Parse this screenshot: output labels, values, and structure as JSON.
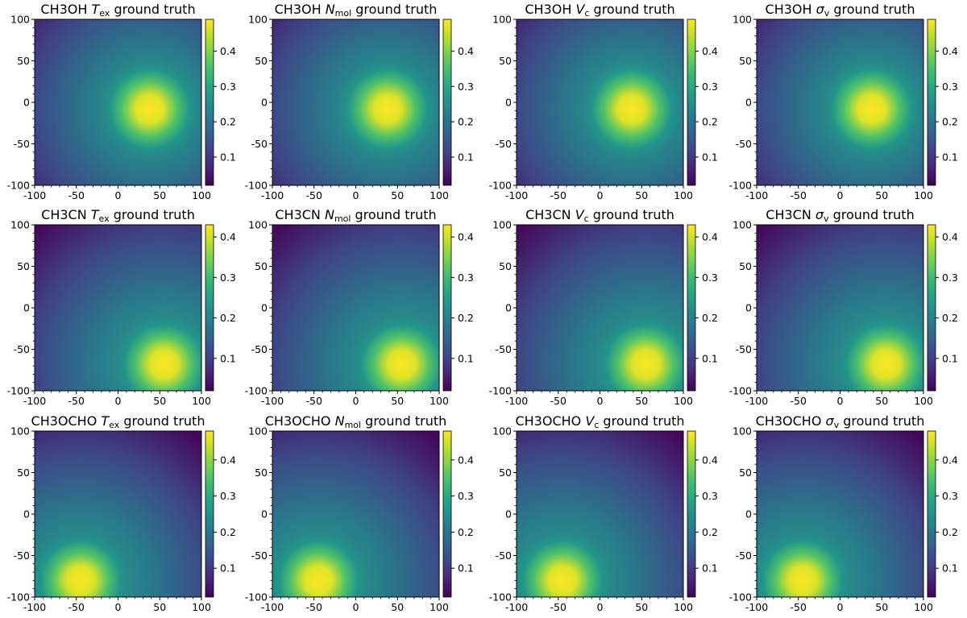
{
  "chart_data": [
    {
      "type": "heatmap",
      "title_prefix": "CH3OH",
      "title_param_base": "T",
      "title_param_sub": "ex",
      "title_suffix": "ground truth",
      "x_ticks": [
        "-100",
        "-50",
        "0",
        "50",
        "100"
      ],
      "y_ticks": [
        "100",
        "50",
        "0",
        "-50",
        "-100"
      ],
      "xlim": [
        -100,
        100
      ],
      "ylim": [
        -100,
        100
      ],
      "colorbar_ticks": [
        "0.1",
        "0.2",
        "0.3",
        "0.4"
      ],
      "vmin": 0.02,
      "vmax": 0.49,
      "peak": {
        "x": 38,
        "y": -8
      },
      "colormap": "viridis"
    },
    {
      "type": "heatmap",
      "title_prefix": "CH3OH",
      "title_param_base": "N",
      "title_param_sub": "mol",
      "title_suffix": "ground truth",
      "x_ticks": [
        "-100",
        "-50",
        "0",
        "50",
        "100"
      ],
      "y_ticks": [
        "100",
        "50",
        "0",
        "-50",
        "-100"
      ],
      "xlim": [
        -100,
        100
      ],
      "ylim": [
        -100,
        100
      ],
      "colorbar_ticks": [
        "0.1",
        "0.2",
        "0.3",
        "0.4"
      ],
      "vmin": 0.02,
      "vmax": 0.49,
      "peak": {
        "x": 38,
        "y": -8
      },
      "colormap": "viridis"
    },
    {
      "type": "heatmap",
      "title_prefix": "CH3OH",
      "title_param_base": "V",
      "title_param_sub": "c",
      "title_suffix": "ground truth",
      "x_ticks": [
        "-100",
        "-50",
        "0",
        "50",
        "100"
      ],
      "y_ticks": [
        "100",
        "50",
        "0",
        "-50",
        "-100"
      ],
      "xlim": [
        -100,
        100
      ],
      "ylim": [
        -100,
        100
      ],
      "colorbar_ticks": [
        "0.1",
        "0.2",
        "0.3",
        "0.4"
      ],
      "vmin": 0.02,
      "vmax": 0.49,
      "peak": {
        "x": 38,
        "y": -8
      },
      "colormap": "viridis"
    },
    {
      "type": "heatmap",
      "title_prefix": "CH3OH",
      "title_param_base": "σ",
      "title_param_sub": "v",
      "title_suffix": "ground truth",
      "x_ticks": [
        "-100",
        "-50",
        "0",
        "50",
        "100"
      ],
      "y_ticks": [
        "100",
        "50",
        "0",
        "-50",
        "-100"
      ],
      "xlim": [
        -100,
        100
      ],
      "ylim": [
        -100,
        100
      ],
      "colorbar_ticks": [
        "0.1",
        "0.2",
        "0.3",
        "0.4"
      ],
      "vmin": 0.02,
      "vmax": 0.49,
      "peak": {
        "x": 38,
        "y": -8
      },
      "colormap": "viridis"
    },
    {
      "type": "heatmap",
      "title_prefix": "CH3CN",
      "title_param_base": "T",
      "title_param_sub": "ex",
      "title_suffix": "ground truth",
      "x_ticks": [
        "-100",
        "-50",
        "0",
        "50",
        "100"
      ],
      "y_ticks": [
        "100",
        "50",
        "0",
        "-50",
        "-100"
      ],
      "xlim": [
        -100,
        100
      ],
      "ylim": [
        -100,
        100
      ],
      "colorbar_ticks": [
        "0.1",
        "0.2",
        "0.3",
        "0.4"
      ],
      "vmin": 0.02,
      "vmax": 0.43,
      "peak": {
        "x": 55,
        "y": -68
      },
      "colormap": "viridis"
    },
    {
      "type": "heatmap",
      "title_prefix": "CH3CN",
      "title_param_base": "N",
      "title_param_sub": "mol",
      "title_suffix": "ground truth",
      "x_ticks": [
        "-100",
        "-50",
        "0",
        "50",
        "100"
      ],
      "y_ticks": [
        "100",
        "50",
        "0",
        "-50",
        "-100"
      ],
      "xlim": [
        -100,
        100
      ],
      "ylim": [
        -100,
        100
      ],
      "colorbar_ticks": [
        "0.1",
        "0.2",
        "0.3",
        "0.4"
      ],
      "vmin": 0.02,
      "vmax": 0.43,
      "peak": {
        "x": 55,
        "y": -68
      },
      "colormap": "viridis"
    },
    {
      "type": "heatmap",
      "title_prefix": "CH3CN",
      "title_param_base": "V",
      "title_param_sub": "c",
      "title_suffix": "ground truth",
      "x_ticks": [
        "-100",
        "-50",
        "0",
        "50",
        "100"
      ],
      "y_ticks": [
        "100",
        "50",
        "0",
        "-50",
        "-100"
      ],
      "xlim": [
        -100,
        100
      ],
      "ylim": [
        -100,
        100
      ],
      "colorbar_ticks": [
        "0.1",
        "0.2",
        "0.3",
        "0.4"
      ],
      "vmin": 0.02,
      "vmax": 0.43,
      "peak": {
        "x": 55,
        "y": -68
      },
      "colormap": "viridis"
    },
    {
      "type": "heatmap",
      "title_prefix": "CH3CN",
      "title_param_base": "σ",
      "title_param_sub": "v",
      "title_suffix": "ground truth",
      "x_ticks": [
        "-100",
        "-50",
        "0",
        "50",
        "100"
      ],
      "y_ticks": [
        "100",
        "50",
        "0",
        "-50",
        "-100"
      ],
      "xlim": [
        -100,
        100
      ],
      "ylim": [
        -100,
        100
      ],
      "colorbar_ticks": [
        "0.1",
        "0.2",
        "0.3",
        "0.4"
      ],
      "vmin": 0.02,
      "vmax": 0.43,
      "peak": {
        "x": 55,
        "y": -68
      },
      "colormap": "viridis"
    },
    {
      "type": "heatmap",
      "title_prefix": "CH3OCHO",
      "title_param_base": "T",
      "title_param_sub": "ex",
      "title_suffix": "ground truth",
      "x_ticks": [
        "-100",
        "-50",
        "0",
        "50",
        "100"
      ],
      "y_ticks": [
        "100",
        "50",
        "0",
        "-50",
        "-100"
      ],
      "xlim": [
        -100,
        100
      ],
      "ylim": [
        -100,
        100
      ],
      "colorbar_ticks": [
        "0.1",
        "0.2",
        "0.3",
        "0.4"
      ],
      "vmin": 0.02,
      "vmax": 0.48,
      "peak": {
        "x": -45,
        "y": -80
      },
      "colormap": "viridis"
    },
    {
      "type": "heatmap",
      "title_prefix": "CH3OCHO",
      "title_param_base": "N",
      "title_param_sub": "mol",
      "title_suffix": "ground truth",
      "x_ticks": [
        "-100",
        "-50",
        "0",
        "50",
        "100"
      ],
      "y_ticks": [
        "100",
        "50",
        "0",
        "-50",
        "-100"
      ],
      "xlim": [
        -100,
        100
      ],
      "ylim": [
        -100,
        100
      ],
      "colorbar_ticks": [
        "0.1",
        "0.2",
        "0.3",
        "0.4"
      ],
      "vmin": 0.02,
      "vmax": 0.48,
      "peak": {
        "x": -45,
        "y": -80
      },
      "colormap": "viridis"
    },
    {
      "type": "heatmap",
      "title_prefix": "CH3OCHO",
      "title_param_base": "V",
      "title_param_sub": "c",
      "title_suffix": "ground truth",
      "x_ticks": [
        "-100",
        "-50",
        "0",
        "50",
        "100"
      ],
      "y_ticks": [
        "100",
        "50",
        "0",
        "-50",
        "-100"
      ],
      "xlim": [
        -100,
        100
      ],
      "ylim": [
        -100,
        100
      ],
      "colorbar_ticks": [
        "0.1",
        "0.2",
        "0.3",
        "0.4"
      ],
      "vmin": 0.02,
      "vmax": 0.48,
      "peak": {
        "x": -45,
        "y": -80
      },
      "colormap": "viridis"
    },
    {
      "type": "heatmap",
      "title_prefix": "CH3OCHO",
      "title_param_base": "σ",
      "title_param_sub": "v",
      "title_suffix": "ground truth",
      "x_ticks": [
        "-100",
        "-50",
        "0",
        "50",
        "100"
      ],
      "y_ticks": [
        "100",
        "50",
        "0",
        "-50",
        "-100"
      ],
      "xlim": [
        -100,
        100
      ],
      "ylim": [
        -100,
        100
      ],
      "colorbar_ticks": [
        "0.1",
        "0.2",
        "0.3",
        "0.4"
      ],
      "vmin": 0.02,
      "vmax": 0.48,
      "peak": {
        "x": -45,
        "y": -80
      },
      "colormap": "viridis"
    }
  ]
}
